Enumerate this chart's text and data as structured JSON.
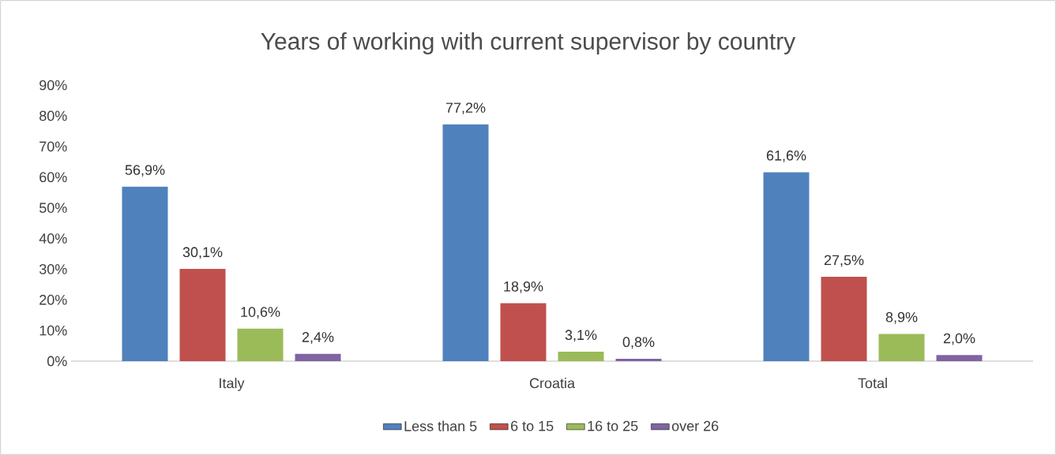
{
  "chart_data": {
    "type": "bar",
    "title": "Years of working with current supervisor  by country",
    "categories": [
      "Italy",
      "Croatia",
      "Total"
    ],
    "series": [
      {
        "name": "Less than 5",
        "color": "#4f81bd",
        "values": [
          56.9,
          77.2,
          61.6
        ],
        "value_labels": [
          "56,9%",
          "77,2%",
          "61,6%"
        ]
      },
      {
        "name": "6 to 15",
        "color": "#c0504d",
        "values": [
          30.1,
          18.9,
          27.5
        ],
        "value_labels": [
          "30,1%",
          "18,9%",
          "27,5%"
        ]
      },
      {
        "name": "16 to 25",
        "color": "#9bbb59",
        "values": [
          10.6,
          3.1,
          8.9
        ],
        "value_labels": [
          "10,6%",
          "3,1%",
          "8,9%"
        ]
      },
      {
        "name": "over 26",
        "color": "#8064a2",
        "values": [
          2.4,
          0.8,
          2.0
        ],
        "value_labels": [
          "2,4%",
          "0,8%",
          "2,0%"
        ]
      }
    ],
    "ylim": [
      0,
      90
    ],
    "yticks": [
      {
        "value": 0,
        "label": "0%"
      },
      {
        "value": 10,
        "label": "10%"
      },
      {
        "value": 20,
        "label": "20%"
      },
      {
        "value": 30,
        "label": "30%"
      },
      {
        "value": 40,
        "label": "40%"
      },
      {
        "value": 50,
        "label": "50%"
      },
      {
        "value": 60,
        "label": "60%"
      },
      {
        "value": 70,
        "label": "70%"
      },
      {
        "value": 80,
        "label": "80%"
      },
      {
        "value": 90,
        "label": "90%"
      }
    ],
    "legend": "bottom"
  }
}
